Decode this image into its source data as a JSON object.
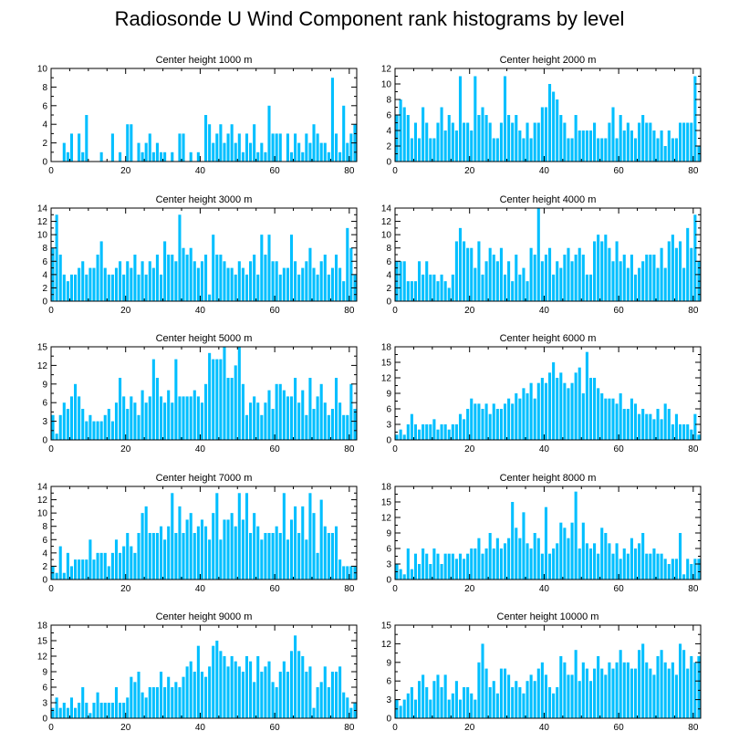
{
  "title": "Radiosonde U Wind Component rank histograms by level",
  "bar_color": "#00bfff",
  "chart_data": [
    {
      "type": "bar",
      "title": "Center height 1000 m",
      "xlim": [
        0,
        82
      ],
      "ylim": [
        0,
        10
      ],
      "xticks": [
        0,
        20,
        40,
        60,
        80
      ],
      "yticks": [
        0,
        2,
        4,
        6,
        8,
        10
      ],
      "values": [
        0,
        0,
        0,
        2,
        1,
        3,
        0,
        3,
        1,
        5,
        0,
        0,
        0,
        1,
        0,
        0,
        3,
        0,
        1,
        0,
        4,
        4,
        0,
        2,
        1,
        2,
        3,
        1,
        2,
        1,
        1,
        0,
        1,
        0,
        3,
        3,
        0,
        1,
        0,
        1,
        0,
        5,
        4,
        2,
        3,
        4,
        2,
        3,
        4,
        2,
        3,
        1,
        3,
        2,
        4,
        1,
        2,
        1,
        6,
        3,
        3,
        3,
        0,
        3,
        1,
        3,
        2,
        1,
        3,
        2,
        4,
        3,
        2,
        2,
        1,
        9,
        3,
        1,
        6,
        2,
        3,
        4
      ]
    },
    {
      "type": "bar",
      "title": "Center height 2000 m",
      "xlim": [
        0,
        82
      ],
      "ylim": [
        0,
        12
      ],
      "xticks": [
        0,
        20,
        40,
        60,
        80
      ],
      "yticks": [
        0,
        2,
        4,
        6,
        8,
        10,
        12
      ],
      "values": [
        6,
        8,
        7,
        6,
        3,
        5,
        3,
        7,
        5,
        3,
        3,
        5,
        7,
        4,
        6,
        5,
        4,
        11,
        5,
        5,
        4,
        11,
        6,
        7,
        6,
        5,
        3,
        3,
        5,
        11,
        6,
        5,
        6,
        4,
        3,
        5,
        3,
        5,
        5,
        7,
        7,
        10,
        9,
        8,
        6,
        5,
        3,
        3,
        6,
        4,
        4,
        4,
        4,
        5,
        3,
        3,
        3,
        5,
        7,
        3,
        6,
        4,
        5,
        4,
        3,
        5,
        6,
        5,
        5,
        4,
        3,
        4,
        2,
        4,
        3,
        3,
        5,
        5,
        5,
        5,
        11,
        2
      ]
    },
    {
      "type": "bar",
      "title": "Center height 3000 m",
      "xlim": [
        0,
        82
      ],
      "ylim": [
        0,
        14
      ],
      "xticks": [
        0,
        20,
        40,
        60,
        80
      ],
      "yticks": [
        0,
        2,
        4,
        6,
        8,
        10,
        12,
        14
      ],
      "values": [
        8,
        13,
        7,
        4,
        3,
        4,
        4,
        5,
        6,
        4,
        5,
        5,
        7,
        9,
        5,
        4,
        4,
        5,
        6,
        4,
        6,
        5,
        7,
        4,
        6,
        4,
        6,
        5,
        7,
        4,
        9,
        7,
        7,
        6,
        13,
        8,
        7,
        8,
        6,
        5,
        6,
        7,
        1,
        10,
        7,
        7,
        6,
        5,
        5,
        4,
        6,
        5,
        4,
        6,
        7,
        4,
        10,
        7,
        10,
        6,
        6,
        4,
        5,
        5,
        10,
        6,
        4,
        5,
        6,
        8,
        5,
        4,
        6,
        7,
        4,
        5,
        7,
        5,
        3,
        11,
        8,
        4
      ]
    },
    {
      "type": "bar",
      "title": "Center height 4000 m",
      "xlim": [
        0,
        82
      ],
      "ylim": [
        0,
        14
      ],
      "xticks": [
        0,
        20,
        40,
        60,
        80
      ],
      "yticks": [
        0,
        2,
        4,
        6,
        8,
        10,
        12,
        14
      ],
      "values": [
        6,
        6,
        6,
        3,
        3,
        3,
        6,
        4,
        6,
        4,
        4,
        3,
        4,
        3,
        2,
        4,
        9,
        11,
        9,
        8,
        8,
        5,
        9,
        4,
        6,
        8,
        7,
        6,
        8,
        4,
        6,
        3,
        7,
        4,
        5,
        3,
        8,
        7,
        14,
        6,
        7,
        8,
        4,
        6,
        5,
        7,
        8,
        6,
        7,
        8,
        7,
        4,
        4,
        9,
        10,
        9,
        10,
        8,
        6,
        9,
        6,
        7,
        5,
        7,
        4,
        5,
        6,
        7,
        7,
        7,
        5,
        8,
        5,
        9,
        10,
        8,
        9,
        5,
        11,
        8,
        13,
        6
      ]
    },
    {
      "type": "bar",
      "title": "Center height 5000 m",
      "xlim": [
        0,
        82
      ],
      "ylim": [
        0,
        15
      ],
      "xticks": [
        0,
        20,
        40,
        60,
        80
      ],
      "yticks": [
        0,
        3,
        6,
        9,
        12,
        15
      ],
      "values": [
        4,
        1,
        4,
        6,
        5,
        7,
        9,
        7,
        5,
        3,
        4,
        3,
        3,
        3,
        4,
        5,
        3,
        6,
        10,
        7,
        5,
        7,
        6,
        4,
        8,
        6,
        7,
        13,
        10,
        7,
        6,
        8,
        6,
        13,
        7,
        7,
        7,
        7,
        8,
        7,
        6,
        9,
        14,
        13,
        13,
        13,
        15,
        10,
        10,
        12,
        15,
        9,
        4,
        6,
        7,
        6,
        4,
        6,
        8,
        5,
        9,
        9,
        8,
        7,
        7,
        10,
        6,
        8,
        4,
        10,
        5,
        7,
        9,
        6,
        4,
        5,
        10,
        6,
        4,
        4,
        9,
        5
      ]
    },
    {
      "type": "bar",
      "title": "Center height 6000 m",
      "xlim": [
        0,
        82
      ],
      "ylim": [
        0,
        18
      ],
      "xticks": [
        0,
        20,
        40,
        60,
        80
      ],
      "yticks": [
        0,
        3,
        6,
        9,
        12,
        15,
        18
      ],
      "values": [
        1,
        2,
        1,
        3,
        5,
        3,
        2,
        3,
        3,
        3,
        4,
        2,
        3,
        3,
        2,
        3,
        3,
        5,
        4,
        6,
        8,
        7,
        7,
        6,
        7,
        5,
        7,
        6,
        6,
        7,
        8,
        7,
        9,
        8,
        10,
        9,
        11,
        8,
        11,
        12,
        11,
        13,
        15,
        12,
        13,
        11,
        10,
        11,
        13,
        14,
        9,
        17,
        12,
        12,
        10,
        9,
        8,
        8,
        8,
        7,
        9,
        6,
        6,
        8,
        7,
        5,
        6,
        5,
        5,
        4,
        6,
        4,
        7,
        6,
        3,
        5,
        3,
        3,
        3,
        2,
        5,
        1
      ]
    },
    {
      "type": "bar",
      "title": "Center height 7000 m",
      "xlim": [
        0,
        82
      ],
      "ylim": [
        0,
        14
      ],
      "xticks": [
        0,
        20,
        40,
        60,
        80
      ],
      "yticks": [
        0,
        2,
        4,
        6,
        8,
        10,
        12,
        14
      ],
      "values": [
        2,
        1,
        5,
        1,
        4,
        2,
        3,
        3,
        3,
        3,
        6,
        3,
        4,
        4,
        4,
        2,
        4,
        6,
        4,
        5,
        7,
        5,
        4,
        7,
        10,
        11,
        7,
        7,
        7,
        8,
        6,
        8,
        13,
        7,
        11,
        7,
        9,
        10,
        7,
        8,
        9,
        8,
        6,
        10,
        13,
        6,
        9,
        9,
        10,
        8,
        13,
        9,
        13,
        7,
        10,
        8,
        6,
        7,
        7,
        7,
        8,
        7,
        13,
        6,
        9,
        11,
        7,
        11,
        6,
        13,
        10,
        4,
        12,
        8,
        7,
        7,
        8,
        3,
        2,
        2,
        2,
        2
      ]
    },
    {
      "type": "bar",
      "title": "Center height 8000 m",
      "xlim": [
        0,
        82
      ],
      "ylim": [
        0,
        18
      ],
      "xticks": [
        0,
        20,
        40,
        60,
        80
      ],
      "yticks": [
        0,
        3,
        6,
        9,
        12,
        15,
        18
      ],
      "values": [
        3,
        2,
        1,
        6,
        2,
        5,
        3,
        6,
        5,
        3,
        6,
        5,
        3,
        5,
        5,
        5,
        4,
        5,
        4,
        5,
        6,
        6,
        8,
        5,
        6,
        9,
        6,
        8,
        6,
        7,
        8,
        15,
        10,
        8,
        13,
        7,
        6,
        9,
        8,
        5,
        14,
        5,
        6,
        7,
        11,
        10,
        8,
        11,
        17,
        6,
        11,
        7,
        6,
        7,
        5,
        10,
        9,
        7,
        5,
        7,
        4,
        6,
        5,
        8,
        6,
        7,
        9,
        5,
        5,
        6,
        5,
        5,
        4,
        3,
        4,
        4,
        9,
        1,
        4,
        3,
        4,
        4
      ]
    },
    {
      "type": "bar",
      "title": "Center height 9000 m",
      "xlim": [
        0,
        82
      ],
      "ylim": [
        0,
        18
      ],
      "xticks": [
        0,
        20,
        40,
        60,
        80
      ],
      "yticks": [
        0,
        3,
        6,
        9,
        12,
        15,
        18
      ],
      "values": [
        2,
        4,
        2,
        3,
        2,
        4,
        2,
        3,
        6,
        3,
        1,
        3,
        5,
        3,
        3,
        3,
        3,
        6,
        3,
        3,
        4,
        8,
        7,
        9,
        5,
        4,
        6,
        6,
        6,
        9,
        6,
        8,
        6,
        7,
        6,
        8,
        10,
        11,
        9,
        14,
        9,
        8,
        10,
        14,
        15,
        13,
        12,
        10,
        12,
        11,
        10,
        9,
        12,
        11,
        7,
        12,
        9,
        10,
        11,
        7,
        6,
        9,
        11,
        9,
        13,
        16,
        13,
        12,
        9,
        10,
        2,
        6,
        7,
        10,
        6,
        9,
        9,
        10,
        5,
        4,
        2,
        3
      ]
    },
    {
      "type": "bar",
      "title": "Center height 10000 m",
      "xlim": [
        0,
        82
      ],
      "ylim": [
        0,
        15
      ],
      "xticks": [
        0,
        20,
        40,
        60,
        80
      ],
      "yticks": [
        0,
        3,
        6,
        9,
        12,
        15
      ],
      "values": [
        3,
        2,
        3,
        4,
        5,
        3,
        6,
        7,
        5,
        3,
        6,
        7,
        5,
        7,
        3,
        4,
        6,
        3,
        5,
        5,
        4,
        3,
        9,
        12,
        8,
        5,
        6,
        4,
        8,
        8,
        7,
        5,
        6,
        5,
        4,
        6,
        7,
        6,
        8,
        9,
        7,
        5,
        4,
        5,
        10,
        9,
        7,
        7,
        11,
        6,
        9,
        8,
        6,
        8,
        10,
        8,
        7,
        9,
        8,
        9,
        11,
        9,
        9,
        8,
        8,
        11,
        12,
        9,
        8,
        7,
        10,
        11,
        9,
        8,
        9,
        7,
        12,
        11,
        8,
        10,
        9,
        10
      ]
    }
  ]
}
